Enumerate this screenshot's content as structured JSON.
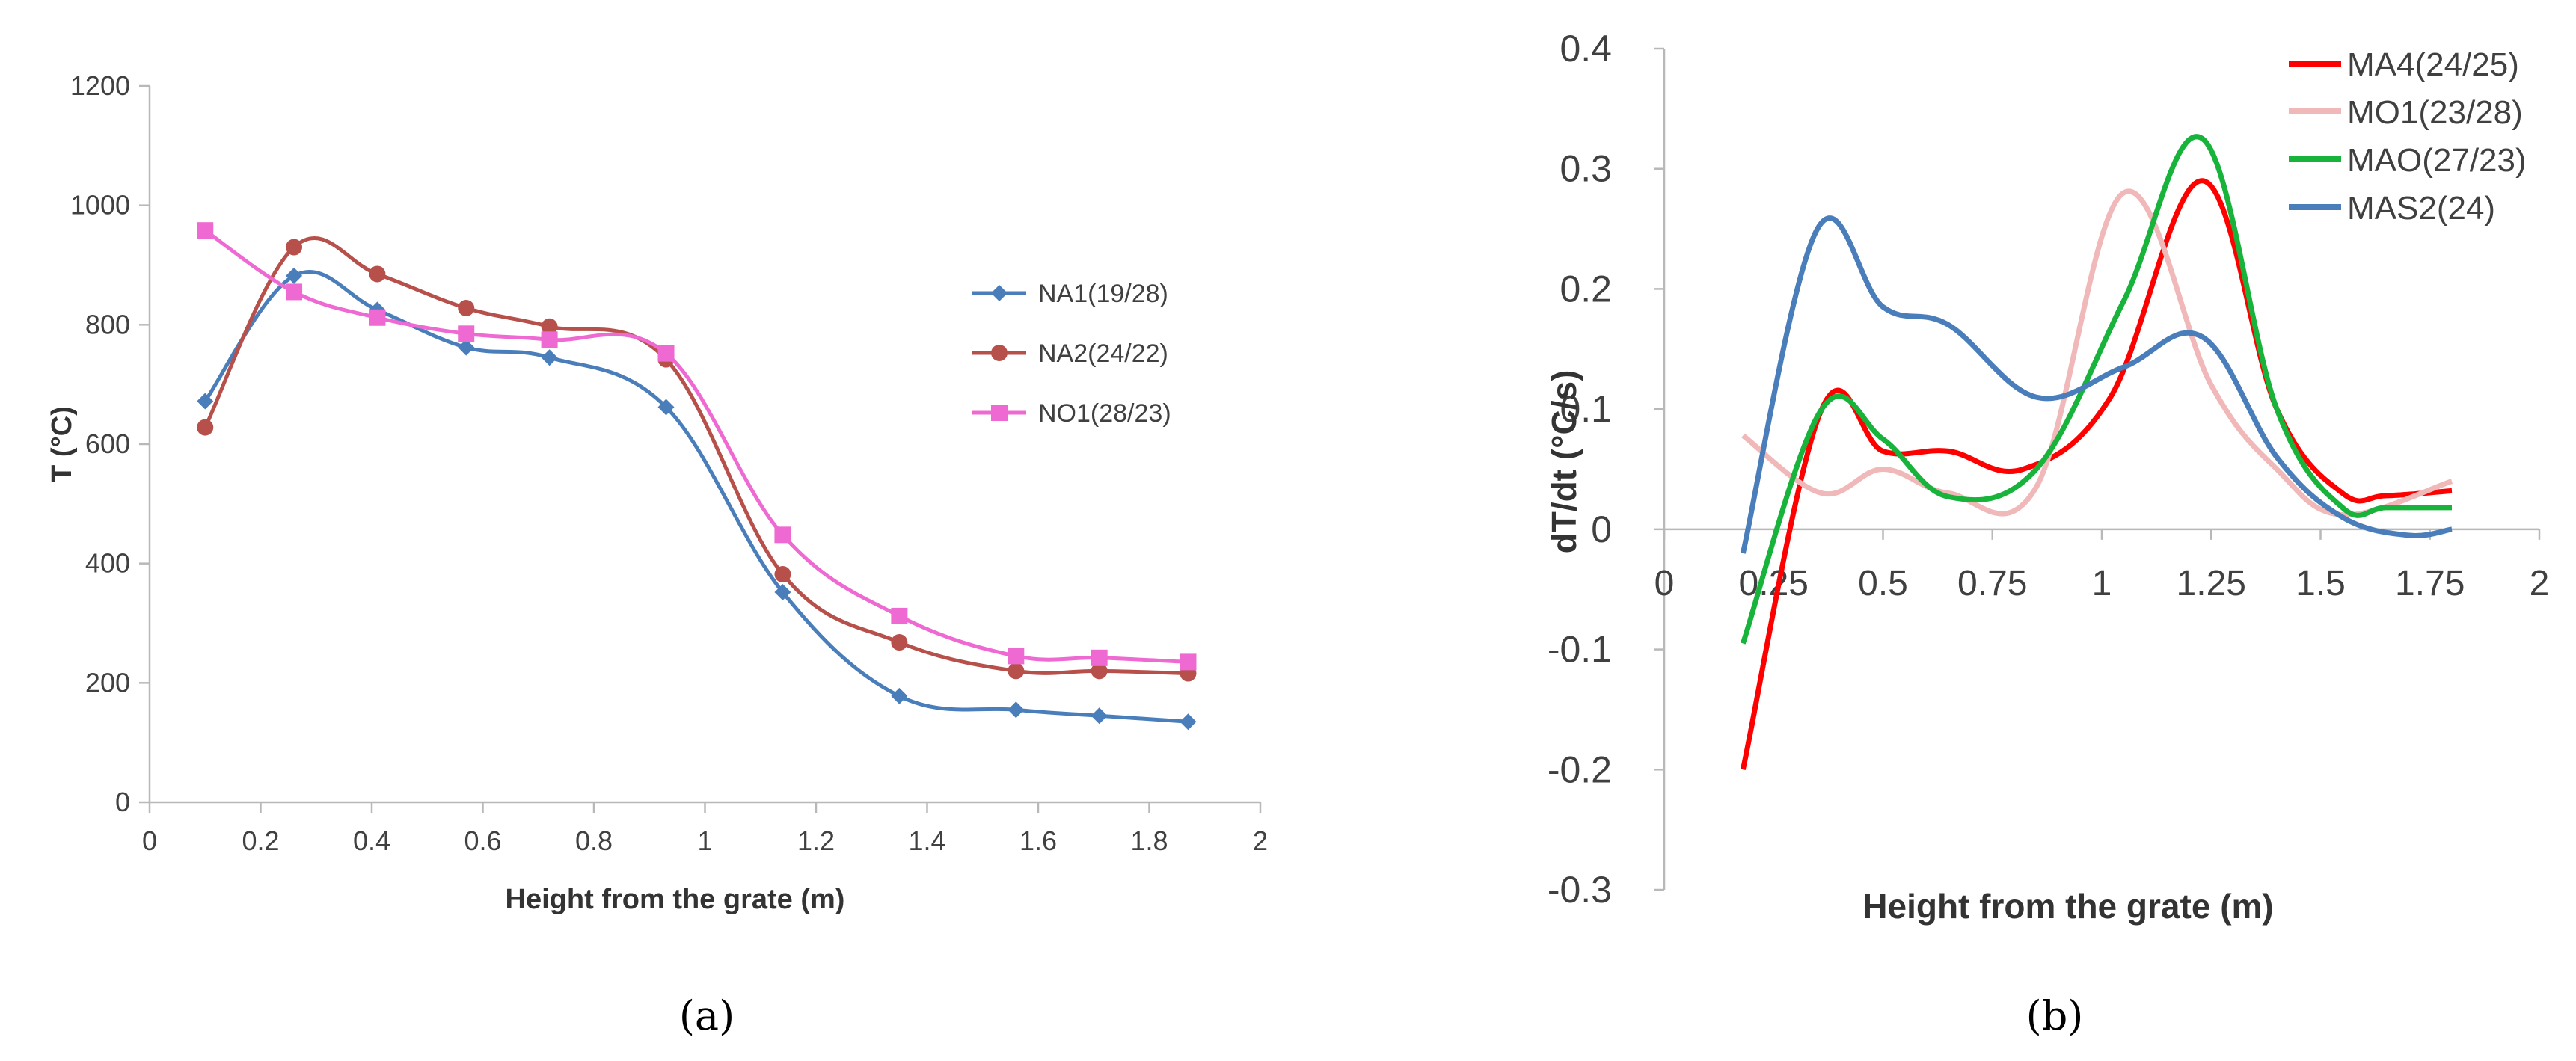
{
  "chart_data": [
    {
      "type": "line",
      "xlabel": "Height from the grate (m)",
      "ylabel": "T (°C)",
      "xlim": [
        0,
        2
      ],
      "ylim": [
        0,
        1200
      ],
      "xticks": [
        "0",
        "0.2",
        "0.4",
        "0.6",
        "0.8",
        "1",
        "1.2",
        "1.4",
        "1.6",
        "1.8",
        "2"
      ],
      "yticks": [
        "0",
        "200",
        "400",
        "600",
        "800",
        "1000",
        "1200"
      ],
      "grid": false,
      "legend_position": "right",
      "caption": "(a)",
      "series": [
        {
          "name": "NA1(19/28)",
          "color": "#4a7ebb",
          "marker": "diamond",
          "points": [
            [
              0.1,
              672
            ],
            [
              0.26,
              882
            ],
            [
              0.41,
              825
            ],
            [
              0.57,
              762
            ],
            [
              0.72,
              745
            ],
            [
              0.93,
              662
            ],
            [
              1.14,
              352
            ],
            [
              1.35,
              178
            ],
            [
              1.56,
              155
            ],
            [
              1.71,
              145
            ],
            [
              1.87,
              135
            ]
          ]
        },
        {
          "name": "NA2(24/22)",
          "color": "#b7504a",
          "marker": "circle",
          "points": [
            [
              0.1,
              628
            ],
            [
              0.26,
              930
            ],
            [
              0.41,
              885
            ],
            [
              0.57,
              828
            ],
            [
              0.72,
              797
            ],
            [
              0.93,
              742
            ],
            [
              1.14,
              382
            ],
            [
              1.35,
              268
            ],
            [
              1.56,
              220
            ],
            [
              1.71,
              220
            ],
            [
              1.87,
              216
            ]
          ]
        },
        {
          "name": "NO1(28/23)",
          "color": "#ee6ad2",
          "marker": "square",
          "points": [
            [
              0.1,
              958
            ],
            [
              0.26,
              855
            ],
            [
              0.41,
              812
            ],
            [
              0.57,
              785
            ],
            [
              0.72,
              775
            ],
            [
              0.93,
              752
            ],
            [
              1.14,
              448
            ],
            [
              1.35,
              312
            ],
            [
              1.56,
              245
            ],
            [
              1.71,
              242
            ],
            [
              1.87,
              235
            ]
          ]
        }
      ]
    },
    {
      "type": "line",
      "xlabel": "Height from the grate (m)",
      "ylabel": "dT/dt (°C/s)",
      "xlim": [
        0,
        2
      ],
      "ylim": [
        -0.3,
        0.4
      ],
      "xticks": [
        "0",
        "0.25",
        "0.5",
        "0.75",
        "1",
        "1.25",
        "1.5",
        "1.75",
        "2"
      ],
      "yticks": [
        "-0.3",
        "-0.2",
        "-0.1",
        "0",
        "0.1",
        "0.2",
        "0.3",
        "0.4"
      ],
      "grid": false,
      "legend_position": "top-right",
      "caption": "(b)",
      "series": [
        {
          "name": "MA4(24/25)",
          "color": "#ff0000",
          "points": [
            [
              0.18,
              -0.2
            ],
            [
              0.36,
              0.1
            ],
            [
              0.5,
              0.065
            ],
            [
              0.65,
              0.065
            ],
            [
              0.82,
              0.05
            ],
            [
              1.02,
              0.11
            ],
            [
              1.23,
              0.29
            ],
            [
              1.4,
              0.1
            ],
            [
              1.55,
              0.03
            ],
            [
              1.65,
              0.028
            ],
            [
              1.8,
              0.032
            ]
          ]
        },
        {
          "name": "MO1(23/28)",
          "color": "#f0b8b8",
          "points": [
            [
              0.18,
              0.078
            ],
            [
              0.36,
              0.03
            ],
            [
              0.5,
              0.05
            ],
            [
              0.65,
              0.03
            ],
            [
              0.85,
              0.035
            ],
            [
              1.05,
              0.28
            ],
            [
              1.25,
              0.12
            ],
            [
              1.4,
              0.05
            ],
            [
              1.55,
              0.012
            ],
            [
              1.8,
              0.04
            ]
          ]
        },
        {
          "name": "MAO(27/23)",
          "color": "#17b33b",
          "points": [
            [
              0.18,
              -0.095
            ],
            [
              0.36,
              0.1
            ],
            [
              0.5,
              0.075
            ],
            [
              0.65,
              0.027
            ],
            [
              0.85,
              0.05
            ],
            [
              1.05,
              0.19
            ],
            [
              1.23,
              0.325
            ],
            [
              1.4,
              0.1
            ],
            [
              1.55,
              0.018
            ],
            [
              1.65,
              0.018
            ],
            [
              1.8,
              0.018
            ]
          ]
        },
        {
          "name": "MAS2(24)",
          "color": "#4a7ebb",
          "points": [
            [
              0.18,
              -0.02
            ],
            [
              0.35,
              0.25
            ],
            [
              0.5,
              0.185
            ],
            [
              0.65,
              0.17
            ],
            [
              0.85,
              0.11
            ],
            [
              1.05,
              0.135
            ],
            [
              1.23,
              0.16
            ],
            [
              1.4,
              0.06
            ],
            [
              1.55,
              0.01
            ],
            [
              1.7,
              -0.005
            ],
            [
              1.8,
              0.0
            ]
          ]
        }
      ]
    }
  ]
}
